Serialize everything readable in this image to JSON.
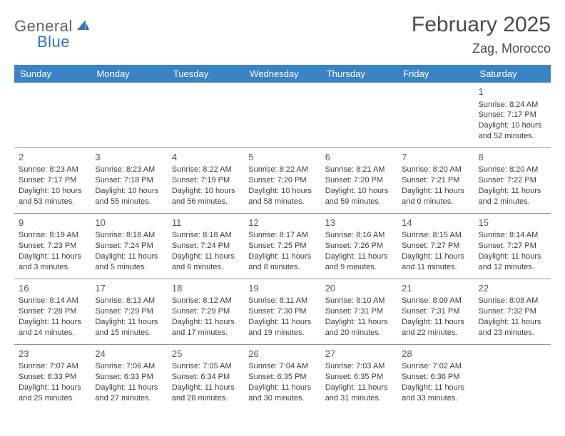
{
  "logo": {
    "text1": "General",
    "text2": "Blue"
  },
  "title": "February 2025",
  "location": "Zag, Morocco",
  "colors": {
    "header_bg": "#3a83c4",
    "header_fg": "#ffffff",
    "grid_line": "#7d99b3",
    "text": "#3d3d3d",
    "logo_blue": "#2f76b8",
    "logo_gray": "#616161"
  },
  "weekdays": [
    "Sunday",
    "Monday",
    "Tuesday",
    "Wednesday",
    "Thursday",
    "Friday",
    "Saturday"
  ],
  "weeks": [
    [
      null,
      null,
      null,
      null,
      null,
      null,
      {
        "n": "1",
        "sunrise": "Sunrise: 8:24 AM",
        "sunset": "Sunset: 7:17 PM",
        "daylight": "Daylight: 10 hours and 52 minutes."
      }
    ],
    [
      {
        "n": "2",
        "sunrise": "Sunrise: 8:23 AM",
        "sunset": "Sunset: 7:17 PM",
        "daylight": "Daylight: 10 hours and 53 minutes."
      },
      {
        "n": "3",
        "sunrise": "Sunrise: 8:23 AM",
        "sunset": "Sunset: 7:18 PM",
        "daylight": "Daylight: 10 hours and 55 minutes."
      },
      {
        "n": "4",
        "sunrise": "Sunrise: 8:22 AM",
        "sunset": "Sunset: 7:19 PM",
        "daylight": "Daylight: 10 hours and 56 minutes."
      },
      {
        "n": "5",
        "sunrise": "Sunrise: 8:22 AM",
        "sunset": "Sunset: 7:20 PM",
        "daylight": "Daylight: 10 hours and 58 minutes."
      },
      {
        "n": "6",
        "sunrise": "Sunrise: 8:21 AM",
        "sunset": "Sunset: 7:20 PM",
        "daylight": "Daylight: 10 hours and 59 minutes."
      },
      {
        "n": "7",
        "sunrise": "Sunrise: 8:20 AM",
        "sunset": "Sunset: 7:21 PM",
        "daylight": "Daylight: 11 hours and 0 minutes."
      },
      {
        "n": "8",
        "sunrise": "Sunrise: 8:20 AM",
        "sunset": "Sunset: 7:22 PM",
        "daylight": "Daylight: 11 hours and 2 minutes."
      }
    ],
    [
      {
        "n": "9",
        "sunrise": "Sunrise: 8:19 AM",
        "sunset": "Sunset: 7:23 PM",
        "daylight": "Daylight: 11 hours and 3 minutes."
      },
      {
        "n": "10",
        "sunrise": "Sunrise: 8:18 AM",
        "sunset": "Sunset: 7:24 PM",
        "daylight": "Daylight: 11 hours and 5 minutes."
      },
      {
        "n": "11",
        "sunrise": "Sunrise: 8:18 AM",
        "sunset": "Sunset: 7:24 PM",
        "daylight": "Daylight: 11 hours and 6 minutes."
      },
      {
        "n": "12",
        "sunrise": "Sunrise: 8:17 AM",
        "sunset": "Sunset: 7:25 PM",
        "daylight": "Daylight: 11 hours and 8 minutes."
      },
      {
        "n": "13",
        "sunrise": "Sunrise: 8:16 AM",
        "sunset": "Sunset: 7:26 PM",
        "daylight": "Daylight: 11 hours and 9 minutes."
      },
      {
        "n": "14",
        "sunrise": "Sunrise: 8:15 AM",
        "sunset": "Sunset: 7:27 PM",
        "daylight": "Daylight: 11 hours and 11 minutes."
      },
      {
        "n": "15",
        "sunrise": "Sunrise: 8:14 AM",
        "sunset": "Sunset: 7:27 PM",
        "daylight": "Daylight: 11 hours and 12 minutes."
      }
    ],
    [
      {
        "n": "16",
        "sunrise": "Sunrise: 8:14 AM",
        "sunset": "Sunset: 7:28 PM",
        "daylight": "Daylight: 11 hours and 14 minutes."
      },
      {
        "n": "17",
        "sunrise": "Sunrise: 8:13 AM",
        "sunset": "Sunset: 7:29 PM",
        "daylight": "Daylight: 11 hours and 15 minutes."
      },
      {
        "n": "18",
        "sunrise": "Sunrise: 8:12 AM",
        "sunset": "Sunset: 7:29 PM",
        "daylight": "Daylight: 11 hours and 17 minutes."
      },
      {
        "n": "19",
        "sunrise": "Sunrise: 8:11 AM",
        "sunset": "Sunset: 7:30 PM",
        "daylight": "Daylight: 11 hours and 19 minutes."
      },
      {
        "n": "20",
        "sunrise": "Sunrise: 8:10 AM",
        "sunset": "Sunset: 7:31 PM",
        "daylight": "Daylight: 11 hours and 20 minutes."
      },
      {
        "n": "21",
        "sunrise": "Sunrise: 8:09 AM",
        "sunset": "Sunset: 7:31 PM",
        "daylight": "Daylight: 11 hours and 22 minutes."
      },
      {
        "n": "22",
        "sunrise": "Sunrise: 8:08 AM",
        "sunset": "Sunset: 7:32 PM",
        "daylight": "Daylight: 11 hours and 23 minutes."
      }
    ],
    [
      {
        "n": "23",
        "sunrise": "Sunrise: 7:07 AM",
        "sunset": "Sunset: 6:33 PM",
        "daylight": "Daylight: 11 hours and 25 minutes."
      },
      {
        "n": "24",
        "sunrise": "Sunrise: 7:06 AM",
        "sunset": "Sunset: 6:33 PM",
        "daylight": "Daylight: 11 hours and 27 minutes."
      },
      {
        "n": "25",
        "sunrise": "Sunrise: 7:05 AM",
        "sunset": "Sunset: 6:34 PM",
        "daylight": "Daylight: 11 hours and 28 minutes."
      },
      {
        "n": "26",
        "sunrise": "Sunrise: 7:04 AM",
        "sunset": "Sunset: 6:35 PM",
        "daylight": "Daylight: 11 hours and 30 minutes."
      },
      {
        "n": "27",
        "sunrise": "Sunrise: 7:03 AM",
        "sunset": "Sunset: 6:35 PM",
        "daylight": "Daylight: 11 hours and 31 minutes."
      },
      {
        "n": "28",
        "sunrise": "Sunrise: 7:02 AM",
        "sunset": "Sunset: 6:36 PM",
        "daylight": "Daylight: 11 hours and 33 minutes."
      },
      null
    ]
  ]
}
